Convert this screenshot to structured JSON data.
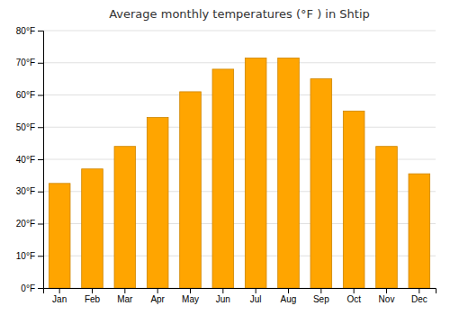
{
  "chart_data": {
    "type": "bar",
    "title": "Average monthly temperatures (°F ) in Shtip",
    "categories": [
      "Jan",
      "Feb",
      "Mar",
      "Apr",
      "May",
      "Jun",
      "Jul",
      "Aug",
      "Sep",
      "Oct",
      "Nov",
      "Dec"
    ],
    "values": [
      32.5,
      37.0,
      44.0,
      53.0,
      61.0,
      68.0,
      71.5,
      71.5,
      65.0,
      55.0,
      44.0,
      35.5
    ],
    "color": "#FFA500",
    "ylim": [
      0,
      80
    ],
    "yticks": [
      {
        "value": 0,
        "label": "0°F"
      },
      {
        "value": 10,
        "label": "10°F"
      },
      {
        "value": 20,
        "label": "20°F"
      },
      {
        "value": 30,
        "label": "30°F"
      },
      {
        "value": 40,
        "label": "40°F"
      },
      {
        "value": 50,
        "label": "50°F"
      },
      {
        "value": 60,
        "label": "60°F"
      },
      {
        "value": 70,
        "label": "70°F"
      },
      {
        "value": 80,
        "label": "80°F"
      }
    ],
    "grid": true
  }
}
